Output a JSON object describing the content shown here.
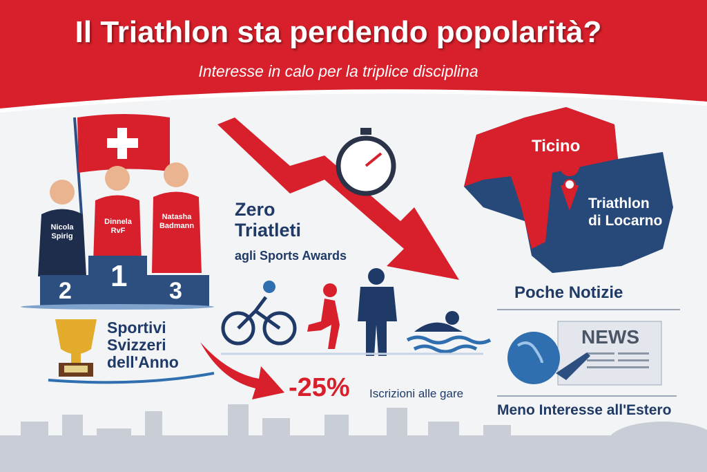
{
  "header": {
    "title": "Il Triathlon sta perdendo popolarità?",
    "subtitle": "Interesse in calo per la triplice disciplina"
  },
  "podium": {
    "athletes": [
      {
        "name": "Nicola Spirig",
        "place": "2"
      },
      {
        "name": "Dinnela RvF",
        "place": "1"
      },
      {
        "name": "Natasha Badmann",
        "place": "3"
      }
    ]
  },
  "awards": {
    "line1": "Zero",
    "line2": "Triatleti",
    "line3": "agli Sports Awards"
  },
  "trophy": {
    "line1": "Sportivi",
    "line2": "Svizzeri",
    "line3": "dell'Anno"
  },
  "stat": {
    "value": "-25%",
    "label": "Iscrizioni alle gare"
  },
  "map": {
    "region": "Ticino",
    "event_line1": "Triathlon",
    "event_line2": "di Locarno"
  },
  "news": {
    "heading": "Poche Notizie",
    "paper": "NEWS",
    "footer": "Meno Interesse all'Estero"
  },
  "colors": {
    "red": "#d7202b",
    "navy": "#1f3a66",
    "blue": "#2f6fb0"
  },
  "icons": [
    "swiss-flag",
    "stopwatch",
    "cyclist",
    "runner",
    "question-person",
    "swimmer",
    "trophy",
    "globe",
    "newspaper",
    "airplane",
    "location-pin",
    "down-arrow"
  ]
}
